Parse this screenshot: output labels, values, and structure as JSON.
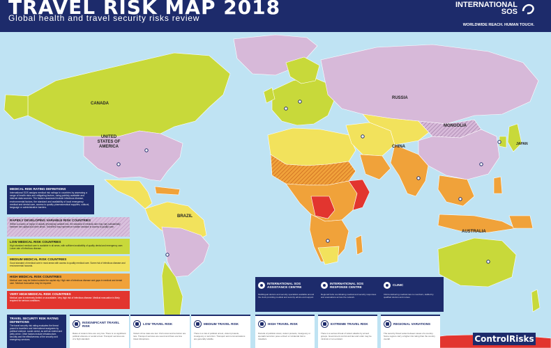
{
  "header": {
    "title": "TRAVEL RISK MAP 2018",
    "subtitle": "Global health and travel security risks review",
    "brand_line1": "INTERNATIONAL",
    "brand_line2": "SOS",
    "brand_tagline": "WORLDWIDE REACH. HUMAN TOUCH."
  },
  "map": {
    "labels": {
      "canada": "CANADA",
      "usa": "UNITED STATES OF AMERICA",
      "russia": "RUSSIA",
      "mongolia": "MONGOLIA",
      "china": "CHINA",
      "brazil": "BRAZIL",
      "australia": "AUSTRALIA",
      "japan": "JAPAN"
    },
    "colors": {
      "ocean": "#bfe3f3",
      "insignificant": "#ffffff",
      "low": "#c8d93a",
      "medium": "#f2e25c",
      "high": "#f0a23a",
      "very_high": "#e2352f",
      "extreme": "#b21f27",
      "variable": "#d7b9d9",
      "land_default": "#d7b9d9"
    }
  },
  "legend": {
    "medical_definitions": {
      "heading": "MEDICAL RISK RATING DEFINITIONS",
      "text": "International SOS assigns medical risk ratings to countries by assessing a range of health risks and mitigating factors, using publicly available and internal data sources. The factors assessed include infectious disease, environmental factors, the standard and availability of local emergency medical and dental care, access to quality pharmaceutical supplies, cultural, language or administrative barriers."
    },
    "bands": [
      {
        "heading": "RAPIDLY DEVELOPING VARIABLE RISK COUNTRIES",
        "text": "Within a country or region of rapidly developing variable risk, the standard of medical care may vary substantially between the capital and other areas. Travellers may experience notable variation in access to quality care.",
        "color": "#d7b9d9"
      },
      {
        "heading": "LOW MEDICAL RISK COUNTRIES",
        "text": "High standard medical care is available in all areas, with sufficient availability of quality dental and emergency care. Lower rate of infectious disease.",
        "color": "#c8d93a"
      },
      {
        "heading": "MEDIUM MEDICAL RISK COUNTRIES",
        "text": "Good standard of medical care in most areas with access to quality medical care. Some risk of infectious disease and environmental hazards.",
        "color": "#f2e25c"
      },
      {
        "heading": "HIGH MEDICAL RISK COUNTRIES",
        "text": "Medical care may be limited outside the capital city. High rate of infectious disease and gaps in medical and dental care. Medical evacuation may be required.",
        "color": "#f0a23a"
      },
      {
        "heading": "VERY HIGH MEDICAL RISK COUNTRIES",
        "text": "Medical care is extremely limited or unavailable. Very high risk of infectious disease. Medical evacuation is likely required for serious conditions.",
        "color": "#e2352f"
      }
    ],
    "security_definitions": {
      "heading": "TRAVEL SECURITY RISK RATING DEFINITIONS",
      "text": "The travel security risk rating evaluates the threat posed to travellers and international assignees by political violence, social unrest, as well as violent and petty crime. Other factors include infrastructure, security and the effectiveness of the security and emergency services."
    },
    "cards": [
      {
        "heading": "INSIGNIFICANT TRAVEL RISK",
        "text": "Rates of violent crime are very low. There is no significant political violence or social unrest. Transport services are of a high standard."
      },
      {
        "heading": "LOW TRAVEL RISK",
        "text": "Violent crime rates are low. Civil unrest and terrorism are rare. Transport services are sound and there are few travel disruptions."
      },
      {
        "heading": "MEDIUM TRAVEL RISK",
        "text": "There is a risk of political unrest, violent protests, insurgency or terrorism. Transport and communications are generally reliable."
      },
      {
        "heading": "HIGH TRAVEL RISK",
        "text": "Periods of political unrest, violent protests, insurgency or sporadic terrorism pose a direct or incidental risk to travellers."
      },
      {
        "heading": "EXTREME TRAVEL RISK",
        "text": "There is a serious threat of violent attacks by armed groups. Government control and law and order may be minimal or non-existent."
      },
      {
        "heading": "REGIONAL VARIATIONS",
        "text": "The security threat varies between areas of a country. Some regions carry a higher risk rating than the country overall."
      }
    ],
    "services": [
      {
        "heading": "INTERNATIONAL SOS ASSISTANCE CENTRE",
        "text": "Multilingual doctors and security specialists available around the clock providing medical and security advice and support."
      },
      {
        "heading": "INTERNATIONAL SOS RESPONSE CENTRE",
        "text": "Regional hubs coordinating medical and security responses and evacuations across the network."
      },
      {
        "heading": "CLINIC",
        "text": "Clinics delivering medical care to members, staffed by qualified doctors and nurses."
      }
    ]
  },
  "footer": {
    "control_risks": "ControlRisks"
  }
}
